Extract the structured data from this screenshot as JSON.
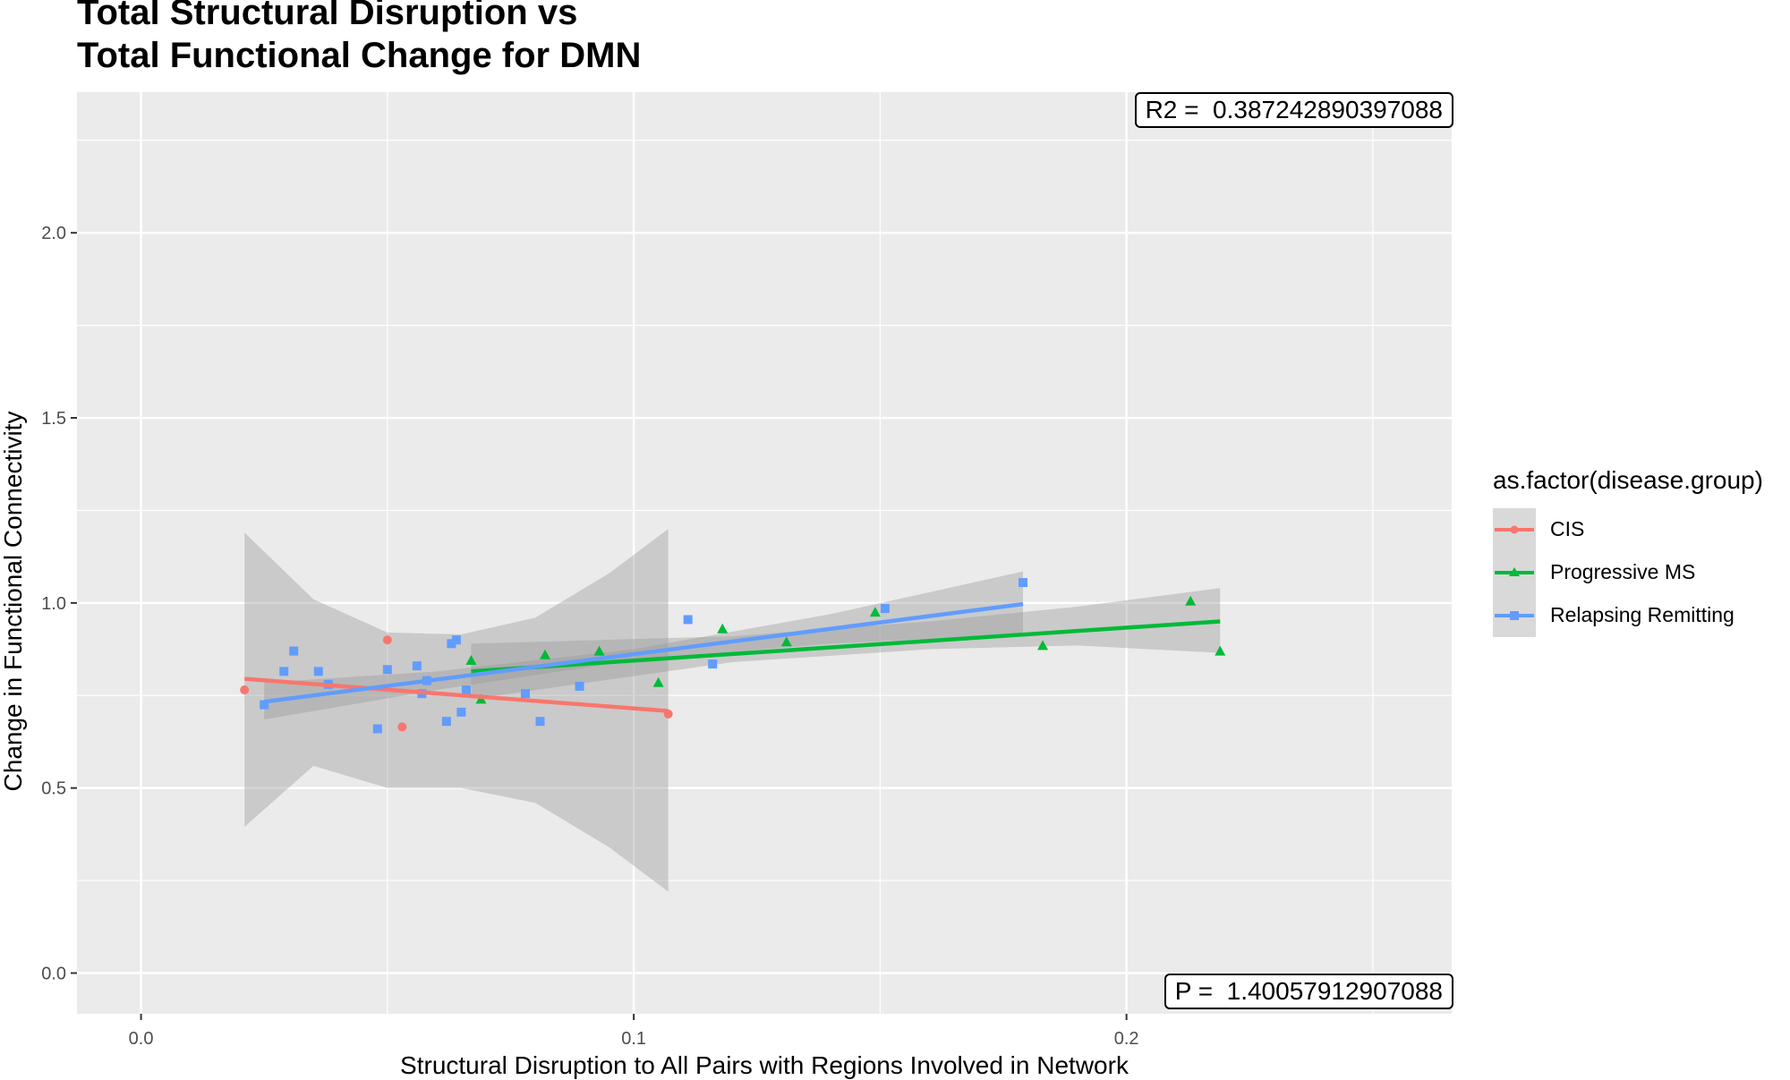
{
  "chart_data": {
    "type": "scatter",
    "title": "Total Structural Disruption vs\nTotal Functional Change for DMN",
    "title_lines": [
      "Total Structural Disruption vs",
      "Total Functional Change for DMN"
    ],
    "xlabel": "Structural Disruption to All Pairs with Regions Involved in Network",
    "ylabel": "Change in Functional Connectivity",
    "xlim": [
      -0.013,
      0.266
    ],
    "ylim": [
      -0.11,
      2.38
    ],
    "x_ticks": [
      0.0,
      0.1,
      0.2
    ],
    "x_tick_labels": [
      "0.0",
      "0.1",
      "0.2"
    ],
    "y_ticks": [
      0.0,
      0.5,
      1.0,
      1.5,
      2.0
    ],
    "y_tick_labels": [
      "0.0",
      "0.5",
      "1.0",
      "1.5",
      "2.0"
    ],
    "grid": true,
    "legend_title": "as.factor(disease.group)",
    "legend_position": "right",
    "annotations": {
      "r2": "R2 =  0.387242890397088",
      "p": "P =  1.40057912907088"
    },
    "series": [
      {
        "name": "CIS",
        "color": "#F8766D",
        "marker": "circle",
        "points": [
          [
            0.021,
            0.765
          ],
          [
            0.05,
            0.9
          ],
          [
            0.053,
            0.665
          ],
          [
            0.107,
            0.7
          ]
        ],
        "fit": [
          [
            0.021,
            0.795
          ],
          [
            0.107,
            0.708
          ]
        ],
        "band_upper": [
          [
            0.021,
            1.19
          ],
          [
            0.035,
            1.01
          ],
          [
            0.05,
            0.92
          ],
          [
            0.065,
            0.915
          ],
          [
            0.08,
            0.96
          ],
          [
            0.095,
            1.08
          ],
          [
            0.107,
            1.2
          ]
        ],
        "band_lower": [
          [
            0.021,
            0.395
          ],
          [
            0.035,
            0.56
          ],
          [
            0.05,
            0.5
          ],
          [
            0.065,
            0.5
          ],
          [
            0.08,
            0.46
          ],
          [
            0.095,
            0.34
          ],
          [
            0.107,
            0.22
          ]
        ]
      },
      {
        "name": "Progressive MS",
        "color": "#00BA38",
        "marker": "triangle",
        "points": [
          [
            0.067,
            0.845
          ],
          [
            0.069,
            0.74
          ],
          [
            0.082,
            0.86
          ],
          [
            0.093,
            0.87
          ],
          [
            0.105,
            0.785
          ],
          [
            0.118,
            0.93
          ],
          [
            0.131,
            0.895
          ],
          [
            0.149,
            0.975
          ],
          [
            0.183,
            0.885
          ],
          [
            0.213,
            1.005
          ],
          [
            0.219,
            0.87
          ]
        ],
        "fit": [
          [
            0.067,
            0.815
          ],
          [
            0.219,
            0.95
          ]
        ],
        "band_upper": [
          [
            0.067,
            0.89
          ],
          [
            0.12,
            0.91
          ],
          [
            0.16,
            0.95
          ],
          [
            0.19,
            0.99
          ],
          [
            0.219,
            1.04
          ]
        ],
        "band_lower": [
          [
            0.067,
            0.74
          ],
          [
            0.12,
            0.84
          ],
          [
            0.16,
            0.875
          ],
          [
            0.19,
            0.885
          ],
          [
            0.219,
            0.865
          ]
        ]
      },
      {
        "name": "Relapsing Remitting",
        "color": "#619CFF",
        "marker": "square",
        "points": [
          [
            0.025,
            0.725
          ],
          [
            0.029,
            0.815
          ],
          [
            0.031,
            0.87
          ],
          [
            0.036,
            0.815
          ],
          [
            0.038,
            0.78
          ],
          [
            0.048,
            0.66
          ],
          [
            0.05,
            0.82
          ],
          [
            0.056,
            0.83
          ],
          [
            0.057,
            0.755
          ],
          [
            0.058,
            0.79
          ],
          [
            0.062,
            0.68
          ],
          [
            0.063,
            0.89
          ],
          [
            0.064,
            0.9
          ],
          [
            0.065,
            0.705
          ],
          [
            0.066,
            0.765
          ],
          [
            0.078,
            0.755
          ],
          [
            0.081,
            0.68
          ],
          [
            0.089,
            0.775
          ],
          [
            0.111,
            0.955
          ],
          [
            0.116,
            0.835
          ],
          [
            0.151,
            0.985
          ],
          [
            0.179,
            1.055
          ]
        ],
        "fit": [
          [
            0.025,
            0.733
          ],
          [
            0.179,
            0.997
          ]
        ],
        "band_upper": [
          [
            0.025,
            0.785
          ],
          [
            0.06,
            0.815
          ],
          [
            0.1,
            0.875
          ],
          [
            0.14,
            0.97
          ],
          [
            0.179,
            1.085
          ]
        ],
        "band_lower": [
          [
            0.025,
            0.685
          ],
          [
            0.06,
            0.765
          ],
          [
            0.1,
            0.845
          ],
          [
            0.14,
            0.89
          ],
          [
            0.179,
            0.915
          ]
        ]
      }
    ]
  }
}
